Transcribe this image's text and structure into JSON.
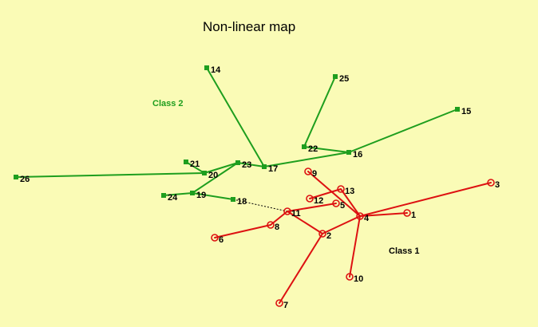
{
  "title": "Non-linear map",
  "colors": {
    "background": "#fafbb6",
    "class2": "#1e9e1e",
    "class1": "#dd1111"
  },
  "classes": {
    "class2": {
      "label": "Class 2"
    },
    "class1": {
      "label": "Class 1"
    }
  },
  "class2_nodes": [
    "14",
    "25",
    "15",
    "22",
    "16",
    "21",
    "23",
    "17",
    "26",
    "20",
    "24",
    "19",
    "18"
  ],
  "class1_nodes": [
    "9",
    "13",
    "3",
    "12",
    "5",
    "11",
    "4",
    "1",
    "8",
    "6",
    "2",
    "10",
    "7"
  ],
  "class2_edges": [
    [
      "14",
      "17"
    ],
    [
      "25",
      "22"
    ],
    [
      "22",
      "16"
    ],
    [
      "15",
      "16"
    ],
    [
      "16",
      "17"
    ],
    [
      "17",
      "23"
    ],
    [
      "23",
      "20"
    ],
    [
      "20",
      "21"
    ],
    [
      "20",
      "26"
    ],
    [
      "23",
      "19"
    ],
    [
      "19",
      "24"
    ],
    [
      "19",
      "18"
    ]
  ],
  "class1_edges": [
    [
      "9",
      "4"
    ],
    [
      "13",
      "4"
    ],
    [
      "13",
      "12"
    ],
    [
      "5",
      "11"
    ],
    [
      "11",
      "2"
    ],
    [
      "11",
      "8"
    ],
    [
      "8",
      "6"
    ],
    [
      "2",
      "4"
    ],
    [
      "2",
      "7"
    ],
    [
      "4",
      "1"
    ],
    [
      "4",
      "3"
    ],
    [
      "4",
      "10"
    ]
  ],
  "dashed_edges": [
    [
      "18",
      "11"
    ]
  ]
}
